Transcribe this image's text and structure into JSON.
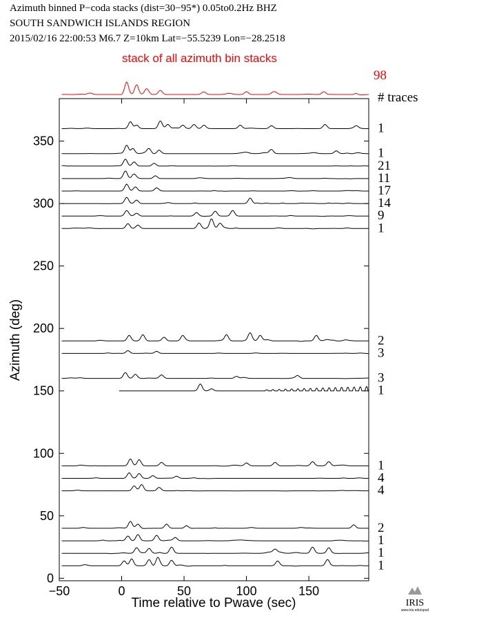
{
  "header": {
    "line1": "Azimuth binned P−coda stacks (dist=30−95*)  0.05to0.2Hz  BHZ",
    "line2": "SOUTH SANDWICH ISLANDS REGION",
    "line3": "2015/02/16  22:00:53  M6.7  Z=10km Lat=−55.5239 Lon=−28.2518"
  },
  "stack": {
    "label": "stack of all azimuth bin stacks",
    "count": "98",
    "color": "#ff0000"
  },
  "traces_label": "# traces",
  "logo": {
    "text": "IRIS",
    "subtext": "www.iris.edu/spud"
  },
  "chart_data": {
    "type": "line",
    "xlabel": "Time relative to Pwave (sec)",
    "ylabel": "Azimuth (deg)",
    "xlim": [
      -50,
      198
    ],
    "ylim": [
      -2,
      384
    ],
    "xticks": [
      -50,
      0,
      50,
      100,
      150
    ],
    "yticks": [
      0,
      50,
      100,
      150,
      200,
      250,
      300,
      350
    ],
    "grid": false,
    "series": [
      {
        "azimuth": 360,
        "count": "1",
        "onset": [
          [
            7,
            10
          ],
          [
            12,
            5
          ],
          [
            31,
            11
          ],
          [
            37,
            6
          ],
          [
            49,
            5
          ],
          [
            58,
            6
          ],
          [
            66,
            5
          ],
          [
            95,
            5
          ],
          [
            120,
            4
          ],
          [
            163,
            6
          ],
          [
            188,
            4
          ]
        ],
        "noise": 0.35
      },
      {
        "azimuth": 340,
        "count": "1",
        "onset": [
          [
            4,
            12
          ],
          [
            9,
            7
          ],
          [
            22,
            7
          ],
          [
            30,
            5
          ],
          [
            120,
            6
          ],
          [
            172,
            4
          ]
        ],
        "noise": 0.4
      },
      {
        "azimuth": 330,
        "count": "21",
        "onset": [
          [
            3,
            10
          ],
          [
            10,
            6
          ],
          [
            26,
            4
          ]
        ],
        "noise": 0.22
      },
      {
        "azimuth": 320,
        "count": "11",
        "onset": [
          [
            3,
            11
          ],
          [
            10,
            6
          ],
          [
            27,
            4
          ]
        ],
        "noise": 0.22
      },
      {
        "azimuth": 310,
        "count": "17",
        "onset": [
          [
            4,
            10
          ],
          [
            11,
            6
          ],
          [
            28,
            4
          ]
        ],
        "noise": 0.22
      },
      {
        "azimuth": 300,
        "count": "14",
        "onset": [
          [
            4,
            9
          ],
          [
            12,
            5
          ],
          [
            103,
            8
          ]
        ],
        "noise": 0.25
      },
      {
        "azimuth": 290,
        "count": "9",
        "onset": [
          [
            4,
            8
          ],
          [
            12,
            4
          ],
          [
            60,
            5
          ],
          [
            75,
            7
          ],
          [
            89,
            8
          ]
        ],
        "noise": 0.3
      },
      {
        "azimuth": 280,
        "count": "1",
        "onset": [
          [
            5,
            7
          ],
          [
            13,
            5
          ],
          [
            62,
            8
          ],
          [
            72,
            14
          ],
          [
            79,
            7
          ]
        ],
        "noise": 0.35
      },
      {
        "azimuth": 190,
        "count": "2",
        "onset": [
          [
            6,
            8
          ],
          [
            17,
            9
          ],
          [
            34,
            5
          ],
          [
            49,
            8
          ],
          [
            84,
            9
          ],
          [
            103,
            10
          ],
          [
            111,
            8
          ],
          [
            156,
            8
          ]
        ],
        "noise": 0.6
      },
      {
        "azimuth": 180,
        "count": "3",
        "onset": [
          [
            5,
            4
          ],
          [
            28,
            3
          ]
        ],
        "noise": 0.22
      },
      {
        "azimuth": 160,
        "count": "3",
        "onset": [
          [
            3,
            8
          ],
          [
            11,
            6
          ],
          [
            32,
            5
          ],
          [
            92,
            3
          ],
          [
            141,
            4
          ]
        ],
        "noise": 0.3
      },
      {
        "azimuth": 150,
        "count": "1",
        "onset": [
          [
            63,
            10
          ],
          [
            72,
            3
          ]
        ],
        "noise": 0.0,
        "oscillation": [
          113,
          198,
          5
        ]
      },
      {
        "azimuth": 90,
        "count": "1",
        "onset": [
          [
            7,
            10
          ],
          [
            14,
            9
          ],
          [
            32,
            5
          ],
          [
            100,
            4
          ],
          [
            123,
            5
          ],
          [
            153,
            6
          ],
          [
            166,
            6
          ]
        ],
        "noise": 0.3
      },
      {
        "azimuth": 80,
        "count": "4",
        "onset": [
          [
            6,
            8
          ],
          [
            14,
            7
          ],
          [
            25,
            4
          ],
          [
            44,
            3
          ]
        ],
        "noise": 0.22
      },
      {
        "azimuth": 70,
        "count": "4",
        "onset": [
          [
            10,
            7
          ],
          [
            16,
            9
          ],
          [
            30,
            5
          ]
        ],
        "noise": 0.22
      },
      {
        "azimuth": 40,
        "count": "2",
        "onset": [
          [
            7,
            10
          ],
          [
            13,
            6
          ],
          [
            36,
            6
          ],
          [
            52,
            4
          ],
          [
            186,
            5
          ]
        ],
        "noise": 0.35
      },
      {
        "azimuth": 30,
        "count": "1",
        "onset": [
          [
            5,
            7
          ],
          [
            13,
            9
          ],
          [
            28,
            8
          ],
          [
            43,
            5
          ]
        ],
        "noise": 0.4
      },
      {
        "azimuth": 20,
        "count": "1",
        "onset": [
          [
            12,
            8
          ],
          [
            22,
            7
          ],
          [
            40,
            9
          ],
          [
            123,
            5
          ],
          [
            153,
            9
          ],
          [
            166,
            8
          ]
        ],
        "noise": 0.45
      },
      {
        "azimuth": 10,
        "count": "1",
        "onset": [
          [
            2,
            7
          ],
          [
            8,
            10
          ],
          [
            22,
            9
          ],
          [
            29,
            11
          ],
          [
            40,
            8
          ],
          [
            125,
            7
          ],
          [
            165,
            9
          ]
        ],
        "noise": 0.55
      }
    ],
    "stack_series": {
      "onset": [
        [
          4,
          18
        ],
        [
          12,
          14
        ],
        [
          20,
          7
        ],
        [
          31,
          6
        ],
        [
          66,
          3
        ],
        [
          100,
          4
        ],
        [
          162,
          4
        ]
      ],
      "noise": 0.7
    }
  }
}
